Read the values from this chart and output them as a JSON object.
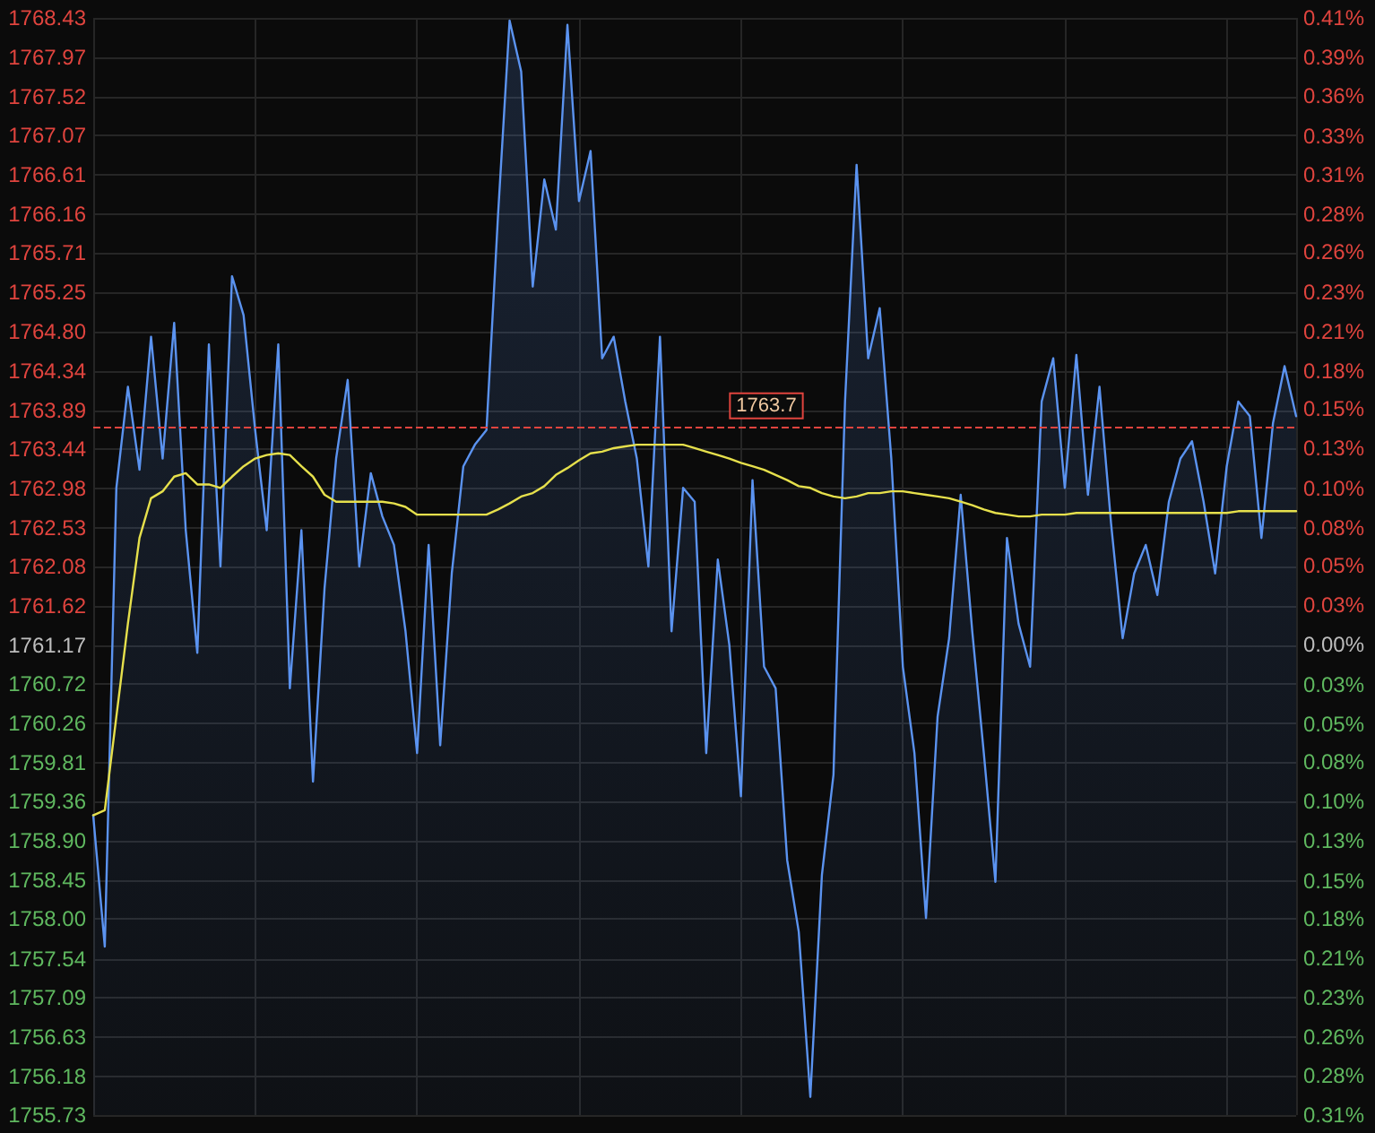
{
  "chart_data": {
    "type": "line",
    "categories": [
      null,
      null,
      null,
      null,
      null,
      null,
      null,
      null,
      null,
      null,
      null,
      null,
      null,
      null,
      null,
      null,
      null,
      null,
      null,
      null,
      null,
      null,
      null,
      null,
      null,
      null,
      null,
      null,
      null,
      null,
      null,
      null,
      null,
      null,
      null,
      null,
      null,
      null,
      null,
      null,
      null,
      null,
      null,
      null,
      null,
      null,
      null,
      null,
      null,
      null,
      null,
      null,
      null,
      null,
      null,
      null,
      null,
      null,
      null,
      null,
      null,
      null,
      null,
      null,
      null,
      null,
      null,
      null,
      null,
      null,
      null,
      null,
      null,
      null,
      null,
      null,
      null,
      null,
      null,
      null,
      null,
      null,
      null,
      null,
      null,
      null,
      null,
      null,
      null,
      null,
      null,
      null,
      null,
      null,
      null,
      null,
      null,
      null,
      null,
      null,
      null,
      null,
      null,
      null,
      null
    ],
    "series": [
      {
        "type": "area",
        "color": "#5b93f0",
        "values": [
          1759.2,
          1757.68,
          1762.99,
          1764.16,
          1763.2,
          1764.74,
          1763.33,
          1764.9,
          1762.5,
          1761.08,
          1764.65,
          1762.08,
          1765.44,
          1764.99,
          1763.66,
          1762.5,
          1764.65,
          1760.67,
          1762.5,
          1759.59,
          1761.83,
          1763.33,
          1764.24,
          1762.08,
          1763.16,
          1762.66,
          1762.33,
          1761.33,
          1759.92,
          1762.33,
          1760.01,
          1762.0,
          1763.24,
          1763.49,
          1763.66,
          1766.15,
          1768.4,
          1767.81,
          1765.32,
          1766.56,
          1765.98,
          1768.35,
          1766.31,
          1766.89,
          1764.49,
          1764.74,
          1763.99,
          1763.33,
          1762.08,
          1764.74,
          1761.33,
          1762.99,
          1762.83,
          1759.92,
          1762.16,
          1761.17,
          1759.42,
          1763.08,
          1760.92,
          1760.67,
          1758.68,
          1757.85,
          1755.94,
          1758.51,
          1759.67,
          1763.99,
          1766.73,
          1764.49,
          1765.07,
          1763.33,
          1760.92,
          1759.92,
          1758.01,
          1760.34,
          1761.25,
          1762.91,
          1761.33,
          1759.92,
          1758.43,
          1762.41,
          1761.42,
          1760.92,
          1763.99,
          1764.49,
          1762.99,
          1764.53,
          1762.91,
          1764.16,
          1762.58,
          1761.25,
          1762.0,
          1762.33,
          1761.75,
          1762.83,
          1763.33,
          1763.53,
          1762.83,
          1762.0,
          1763.24,
          1763.99,
          1763.82,
          1762.41,
          1763.74,
          1764.4,
          1763.82
        ]
      },
      {
        "color": "#e6e04c",
        "values": [
          1759.2,
          1759.26,
          1760.34,
          1761.42,
          1762.41,
          1762.87,
          1762.95,
          1763.12,
          1763.16,
          1763.03,
          1763.03,
          1762.99,
          1763.12,
          1763.24,
          1763.33,
          1763.37,
          1763.39,
          1763.37,
          1763.24,
          1763.12,
          1762.91,
          1762.83,
          1762.83,
          1762.83,
          1762.83,
          1762.83,
          1762.81,
          1762.77,
          1762.68,
          1762.68,
          1762.68,
          1762.68,
          1762.68,
          1762.68,
          1762.68,
          1762.74,
          1762.81,
          1762.89,
          1762.93,
          1763.01,
          1763.14,
          1763.22,
          1763.31,
          1763.39,
          1763.41,
          1763.45,
          1763.47,
          1763.49,
          1763.49,
          1763.49,
          1763.49,
          1763.49,
          1763.45,
          1763.41,
          1763.37,
          1763.33,
          1763.28,
          1763.24,
          1763.2,
          1763.14,
          1763.08,
          1763.01,
          1762.99,
          1762.93,
          1762.89,
          1762.87,
          1762.89,
          1762.93,
          1762.93,
          1762.95,
          1762.95,
          1762.93,
          1762.91,
          1762.89,
          1762.87,
          1762.83,
          1762.79,
          1762.74,
          1762.7,
          1762.68,
          1762.66,
          1762.66,
          1762.68,
          1762.68,
          1762.68,
          1762.7,
          1762.7,
          1762.7,
          1762.7,
          1762.7,
          1762.7,
          1762.7,
          1762.7,
          1762.7,
          1762.7,
          1762.7,
          1762.7,
          1762.7,
          1762.7,
          1762.72,
          1762.72,
          1762.72,
          1762.72,
          1762.72,
          1762.72
        ]
      }
    ],
    "ylim": [
      1755.73,
      1768.43
    ],
    "yticks": [
      1768.43,
      1767.97,
      1767.52,
      1767.07,
      1766.61,
      1766.16,
      1765.71,
      1765.25,
      {
        "value": 1764.8,
        "label": "1764.80"
      },
      1764.34,
      1763.89,
      1763.44,
      1762.98,
      1762.53,
      1762.08,
      1761.62,
      1761.17,
      1760.72,
      1760.26,
      1759.81,
      1759.36,
      {
        "value": 1758.9,
        "label": "1758.90"
      },
      1758.45,
      {
        "value": 1758,
        "label": "1758.00"
      },
      1757.54,
      1757.09,
      1756.63,
      1756.18,
      1755.73
    ],
    "y2lim": [
      -0.309,
      0.412
    ],
    "y2ticks": [
      {
        "value": 0.412,
        "label": "0.41%"
      },
      {
        "value": 0.386,
        "label": "0.39%"
      },
      {
        "value": 0.361,
        "label": "0.36%"
      },
      {
        "value": 0.334,
        "label": "0.33%"
      },
      {
        "value": 0.309,
        "label": "0.31%"
      },
      {
        "value": 0.283,
        "label": "0.28%"
      },
      {
        "value": 0.258,
        "label": "0.26%"
      },
      {
        "value": 0.232,
        "label": "0.23%"
      },
      {
        "value": 0.206,
        "label": "0.21%"
      },
      {
        "value": 0.18,
        "label": "0.18%"
      },
      {
        "value": 0.155,
        "label": "0.15%"
      },
      {
        "value": 0.129,
        "label": "0.13%"
      },
      {
        "value": 0.103,
        "label": "0.10%"
      },
      {
        "value": 0.077,
        "label": "0.08%"
      },
      {
        "value": 0.052,
        "label": "0.05%"
      },
      {
        "value": 0.026,
        "label": "0.03%"
      },
      {
        "value": 0,
        "label": "0.00%"
      },
      {
        "value": -0.026,
        "label": "0.03%"
      },
      {
        "value": -0.052,
        "label": "0.05%"
      },
      {
        "value": -0.077,
        "label": "0.08%"
      },
      {
        "value": -0.103,
        "label": "0.10%"
      },
      {
        "value": -0.129,
        "label": "0.13%"
      },
      {
        "value": -0.155,
        "label": "0.15%"
      },
      {
        "value": -0.18,
        "label": "0.18%"
      },
      {
        "value": -0.206,
        "label": "0.21%"
      },
      {
        "value": -0.232,
        "label": "0.23%"
      },
      {
        "value": -0.258,
        "label": "0.26%"
      },
      {
        "value": -0.283,
        "label": "0.28%"
      },
      {
        "value": -0.309,
        "label": "0.31%"
      }
    ],
    "ref_lines": [
      {
        "axis": "y",
        "value": 1763.7,
        "label": "1763.7",
        "color": "#e0443e",
        "line_style": "dashed"
      }
    ],
    "grid": true,
    "line_style": "solid"
  }
}
